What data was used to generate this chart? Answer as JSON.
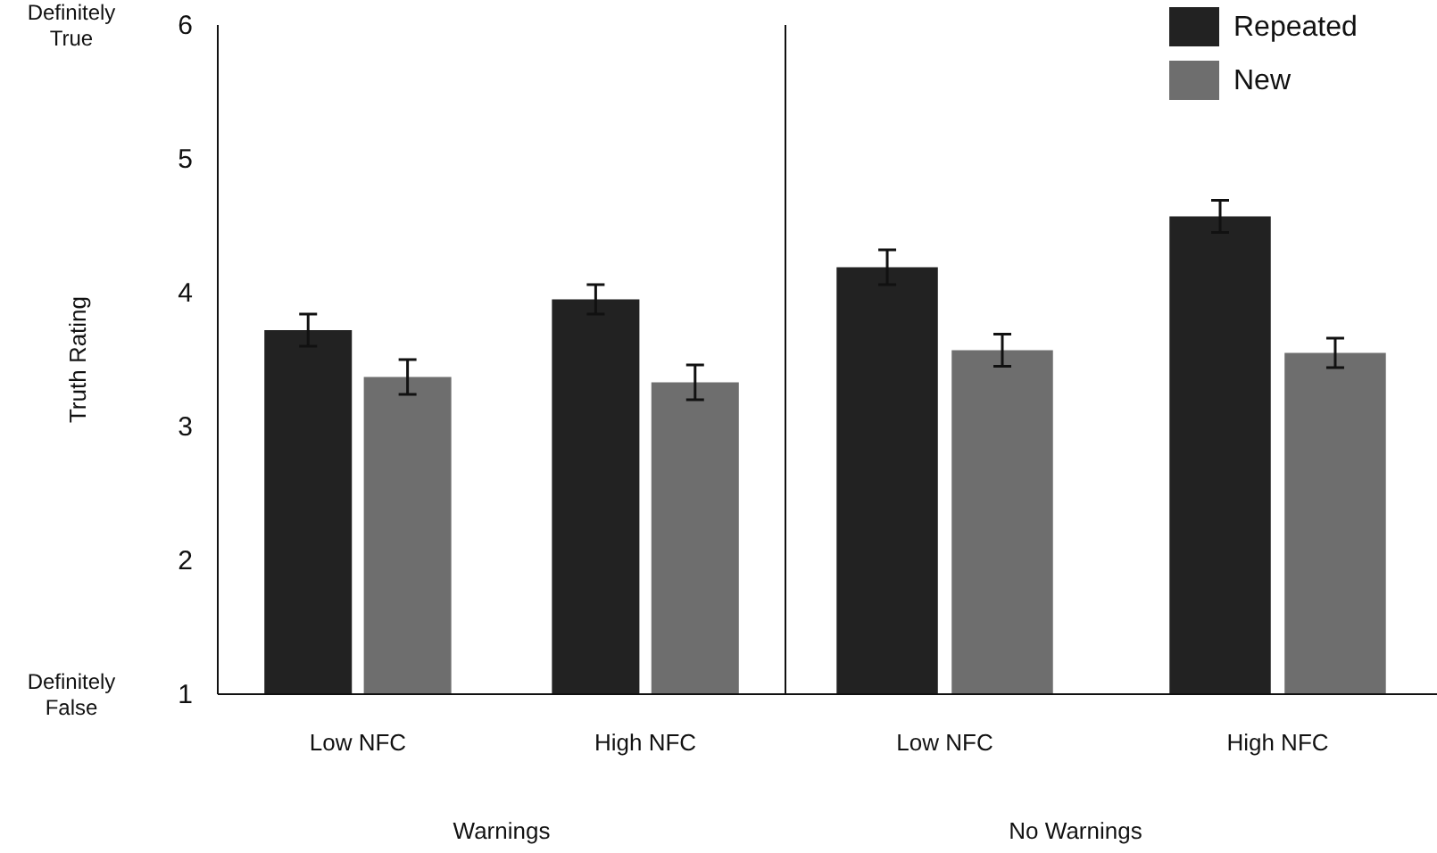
{
  "chart_data": [
    {
      "type": "bar",
      "ylabel": "Truth Rating",
      "xlabel": "Warnings",
      "categories": [
        "Low NFC",
        "High NFC"
      ],
      "ylim": [
        1,
        6
      ],
      "yticks": [
        1,
        2,
        3,
        4,
        5,
        6
      ],
      "legend": false,
      "annotations": [
        "Definitely True",
        "Definitely False"
      ],
      "series": [
        {
          "color": "#222222",
          "values": [
            3.72,
            3.95
          ],
          "errors": [
            0.12,
            0.11
          ]
        },
        {
          "color": "#6e6e6e",
          "values": [
            3.37,
            3.33
          ],
          "errors": [
            0.13,
            0.13
          ]
        }
      ]
    },
    {
      "type": "bar",
      "xlabel": "No Warnings",
      "categories": [
        "Low NFC",
        "High NFC"
      ],
      "ylim": [
        1,
        6
      ],
      "tick_labels": "x",
      "legend": "top right",
      "series": [
        {
          "name": "Repeated",
          "color": "#222222",
          "values": [
            4.19,
            4.57
          ],
          "errors": [
            0.13,
            0.12
          ]
        },
        {
          "name": "New",
          "color": "#6e6e6e",
          "values": [
            3.57,
            3.55
          ],
          "errors": [
            0.12,
            0.11
          ]
        }
      ]
    }
  ]
}
